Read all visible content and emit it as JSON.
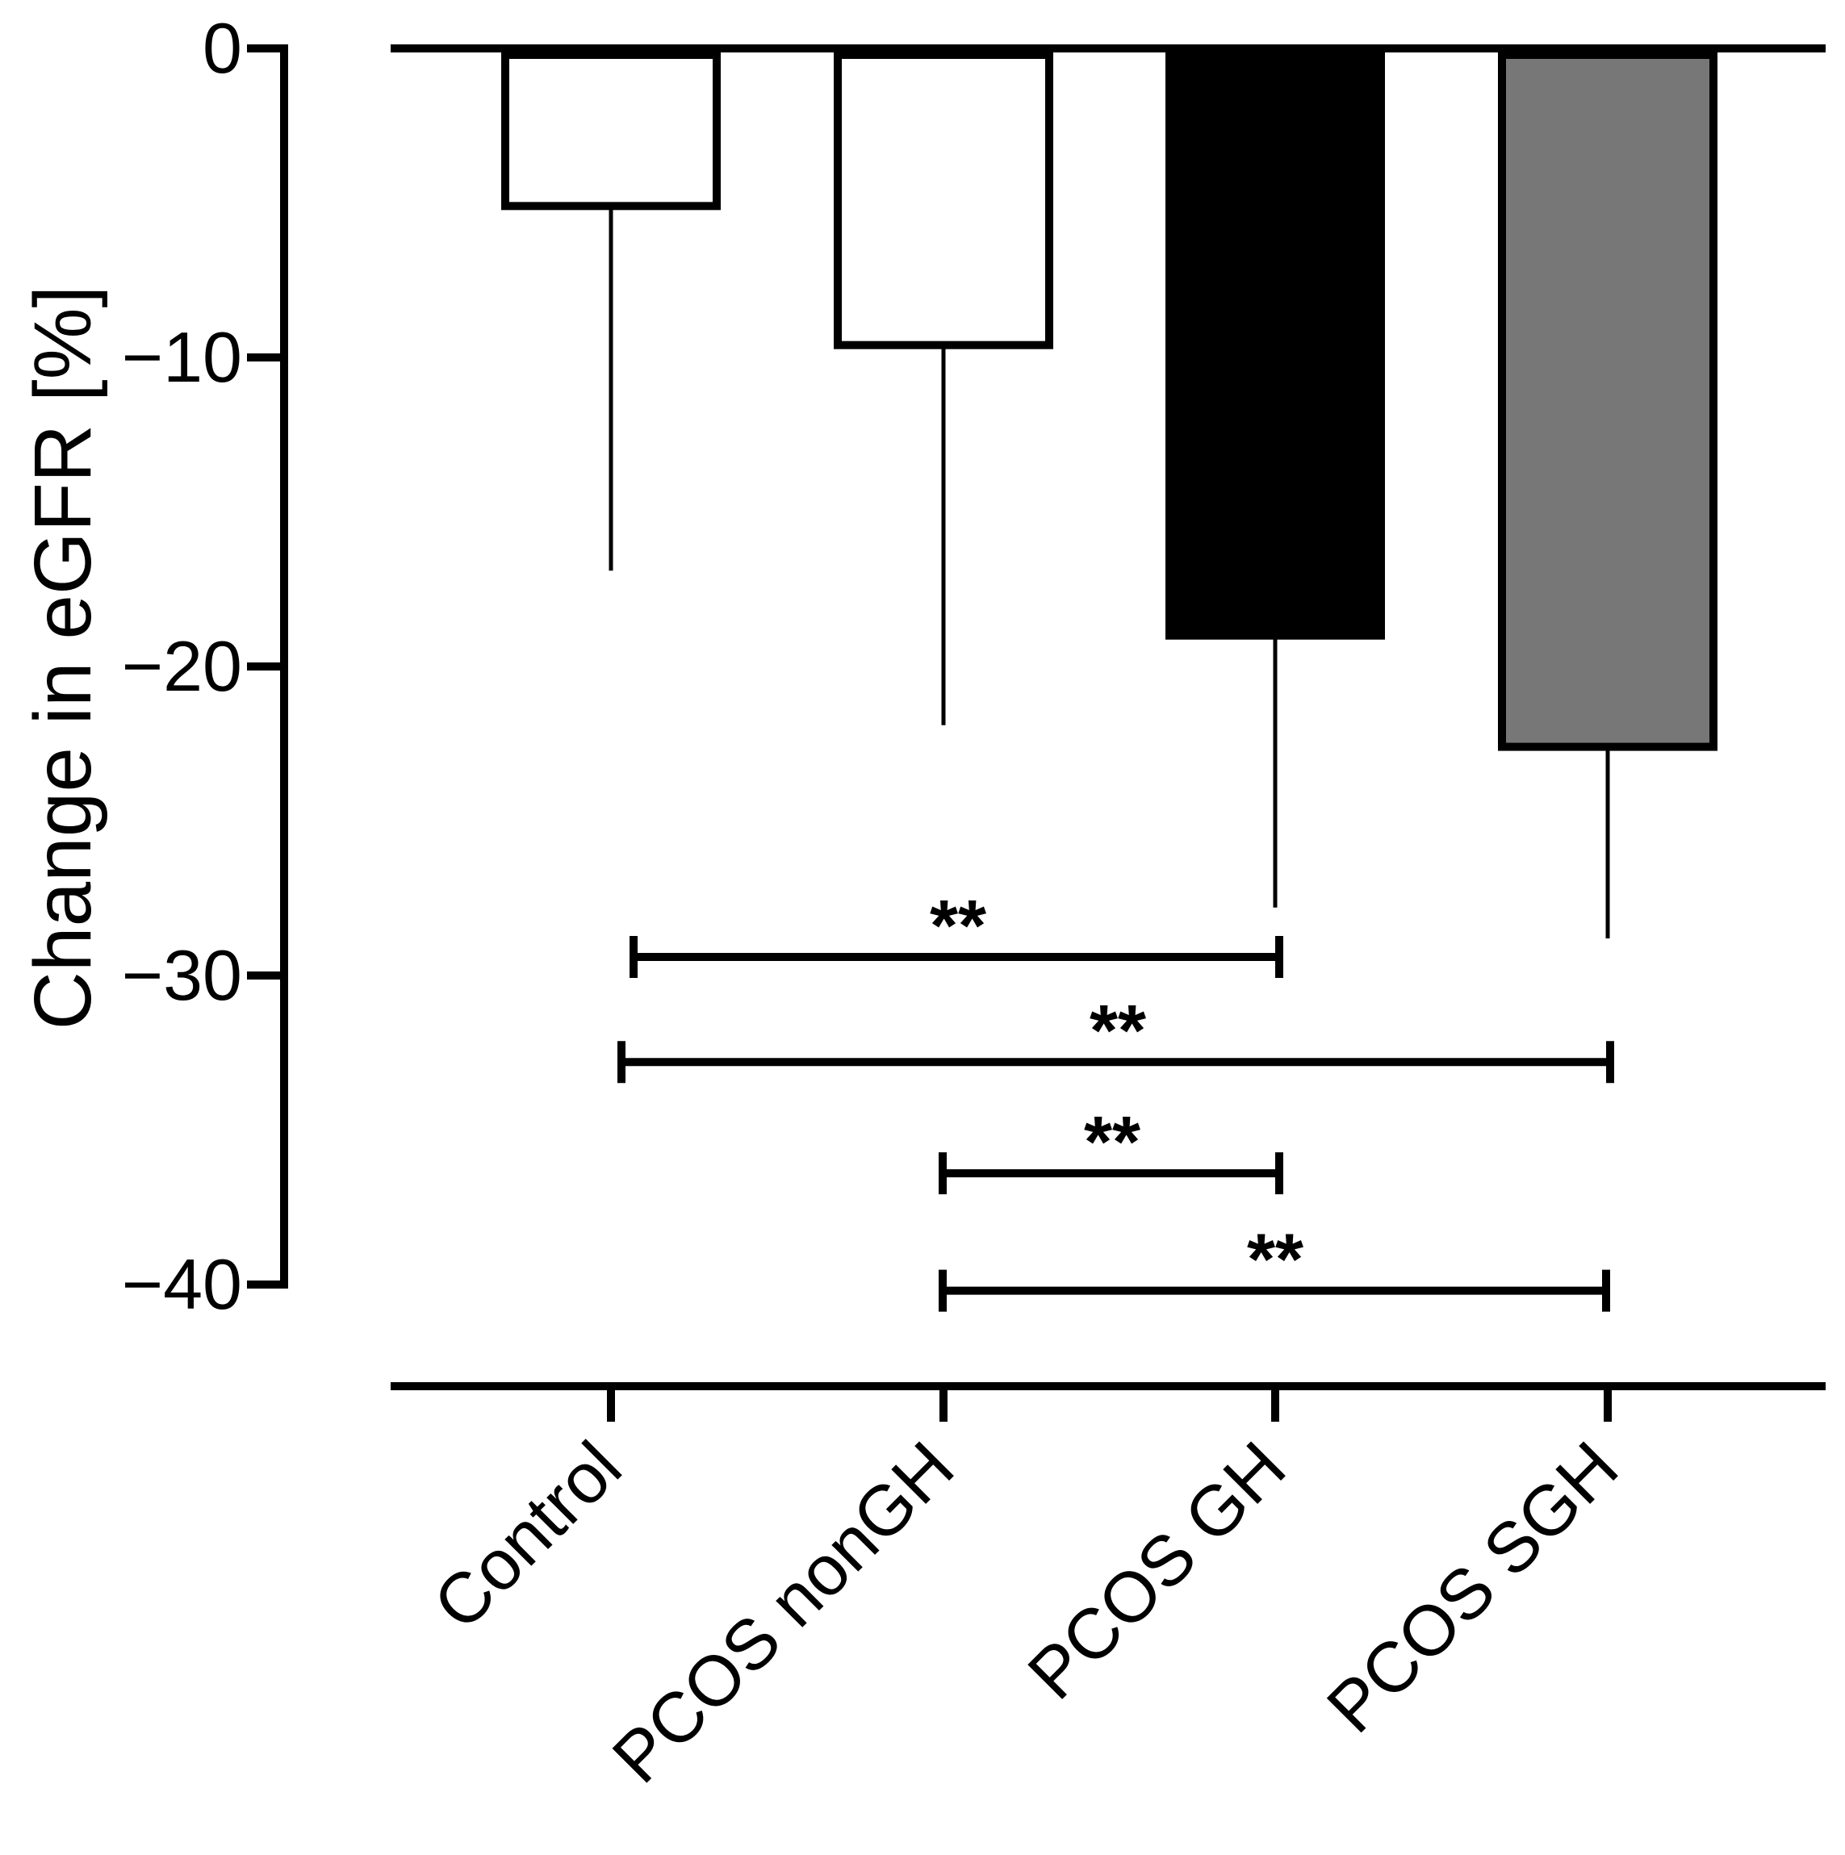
{
  "chart_data": {
    "type": "bar",
    "title": "",
    "xlabel": "",
    "ylabel": "Change in eGFR [%]",
    "ylim": [
      -40,
      0
    ],
    "yticks": [
      0,
      -10,
      -20,
      -30,
      -40
    ],
    "ytick_labels": [
      "0",
      "−10",
      "−20",
      "−30",
      "−40"
    ],
    "categories": [
      "Control",
      "PCOS nonGH",
      "PCOS GH",
      "PCOS SGH"
    ],
    "values": [
      -5.1,
      -9.6,
      -19.0,
      -22.6
    ],
    "error_low": [
      -16.9,
      -21.9,
      -27.8,
      -28.8
    ],
    "bar_colors": [
      "#ffffff",
      "#ffffff",
      "#000000",
      "#777777"
    ],
    "significance": [
      {
        "from": "Control",
        "to": "PCOS GH",
        "label": "**",
        "y": -29.4
      },
      {
        "from": "Control",
        "to": "PCOS SGH",
        "label": "**",
        "y": -32.8
      },
      {
        "from": "PCOS nonGH",
        "to": "PCOS GH",
        "label": "**",
        "y": -36.4
      },
      {
        "from": "PCOS nonGH",
        "to": "PCOS SGH",
        "label": "**",
        "y": -40.2
      }
    ]
  }
}
